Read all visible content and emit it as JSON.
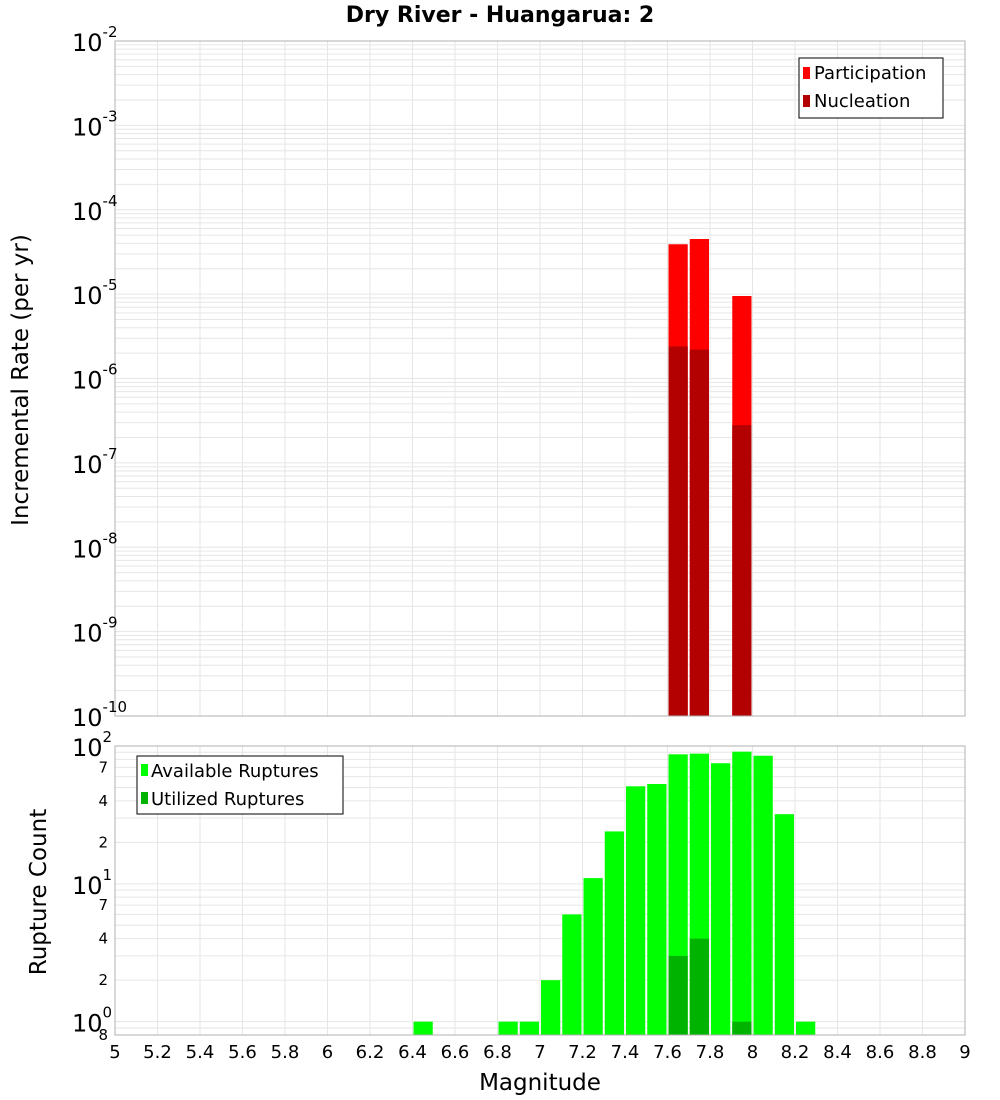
{
  "chart_data": [
    {
      "type": "bar",
      "title": "Dry River - Huangarua: 2",
      "ylabel": "Incremental Rate (per yr)",
      "yscale": "log",
      "ylim": [
        1e-10,
        0.01
      ],
      "xlim": [
        5,
        9
      ],
      "y_ticks": [
        {
          "base": "10",
          "exp": "-2"
        },
        {
          "base": "10",
          "exp": "-3"
        },
        {
          "base": "10",
          "exp": "-4"
        },
        {
          "base": "10",
          "exp": "-5"
        },
        {
          "base": "10",
          "exp": "-6"
        },
        {
          "base": "10",
          "exp": "-7"
        },
        {
          "base": "10",
          "exp": "-8"
        },
        {
          "base": "10",
          "exp": "-9"
        },
        {
          "base": "10",
          "exp": "-10"
        }
      ],
      "legend": {
        "position": "top-right",
        "entries": [
          "Participation",
          "Nucleation"
        ]
      },
      "series": [
        {
          "name": "Participation",
          "color": "#ff0000",
          "x": [
            7.65,
            7.75,
            7.95
          ],
          "values": [
            3.9e-05,
            4.5e-05,
            9.5e-06
          ]
        },
        {
          "name": "Nucleation",
          "color": "#b30000",
          "x": [
            7.65,
            7.75,
            7.95
          ],
          "values": [
            2.4e-06,
            2.2e-06,
            2.8e-07
          ]
        }
      ]
    },
    {
      "type": "bar",
      "ylabel": "Rupture Count",
      "xlabel": "Magnitude",
      "yscale": "log",
      "ylim": [
        0.8,
        100
      ],
      "xlim": [
        5,
        9
      ],
      "x_ticks": [
        "5",
        "5.2",
        "5.4",
        "5.6",
        "5.8",
        "6",
        "6.2",
        "6.4",
        "6.6",
        "6.8",
        "7",
        "7.2",
        "7.4",
        "7.6",
        "7.8",
        "8",
        "8.2",
        "8.4",
        "8.6",
        "8.8",
        "9"
      ],
      "y_major_ticks": [
        {
          "base": "10",
          "exp": "2",
          "value": 100
        },
        {
          "base": "10",
          "exp": "1",
          "value": 10
        },
        {
          "base": "10",
          "exp": "0",
          "value": 1
        }
      ],
      "y_minor_ticks": [
        {
          "label": "7",
          "value": 70
        },
        {
          "label": "4",
          "value": 40
        },
        {
          "label": "2",
          "value": 20
        },
        {
          "label": "7",
          "value": 7
        },
        {
          "label": "4",
          "value": 4
        },
        {
          "label": "2",
          "value": 2
        },
        {
          "label": "8",
          "value": 0.8
        }
      ],
      "legend": {
        "position": "top-left",
        "entries": [
          "Available Ruptures",
          "Utilized Ruptures"
        ]
      },
      "series": [
        {
          "name": "Available Ruptures",
          "color": "#00ff00",
          "x": [
            6.45,
            6.85,
            6.95,
            7.05,
            7.15,
            7.25,
            7.35,
            7.45,
            7.55,
            7.65,
            7.75,
            7.85,
            7.95,
            8.05,
            8.15,
            8.25
          ],
          "values": [
            1,
            1,
            1,
            2,
            6,
            11,
            24,
            51,
            53,
            87,
            88,
            75,
            91,
            85,
            32,
            1
          ]
        },
        {
          "name": "Utilized Ruptures",
          "color": "#00b300",
          "x": [
            7.65,
            7.75,
            7.95
          ],
          "values": [
            3,
            4,
            1
          ]
        }
      ]
    }
  ]
}
